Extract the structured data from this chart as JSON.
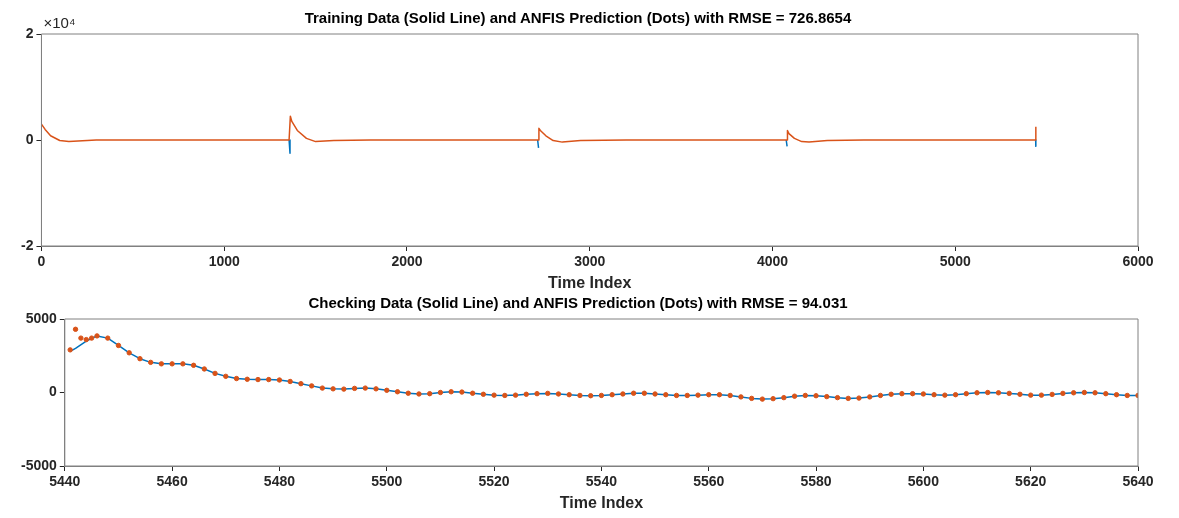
{
  "chart_data": [
    {
      "type": "line",
      "title": "Training Data (Solid Line) and ANFIS Prediction (Dots) with RMSE = 726.8654",
      "xlabel": "Time Index",
      "annotations": [
        "×10⁴"
      ],
      "xlim": [
        0,
        6000
      ],
      "xticks": [
        0,
        1000,
        2000,
        3000,
        4000,
        5000,
        6000
      ],
      "ylim": [
        -2,
        2
      ],
      "yticks": [
        -2,
        0,
        2
      ],
      "x": [
        0,
        20,
        50,
        100,
        150,
        200,
        300,
        500,
        1000,
        1355,
        1360,
        1362,
        1370,
        1400,
        1450,
        1500,
        1600,
        1800,
        2500,
        2715,
        2720,
        2722,
        2730,
        2760,
        2800,
        2850,
        2950,
        3200,
        4000,
        4075,
        4080,
        4082,
        4090,
        4120,
        4160,
        4200,
        4300,
        4500,
        5435,
        5440,
        5441
      ],
      "series": [
        {
          "color": "#0072bd",
          "values": [
            null,
            null,
            null,
            null,
            null,
            null,
            null,
            null,
            null,
            0,
            -0.25,
            null,
            null,
            null,
            null,
            null,
            null,
            null,
            null,
            0,
            -0.15,
            null,
            null,
            null,
            null,
            null,
            null,
            null,
            null,
            0,
            -0.12,
            null,
            null,
            null,
            null,
            null,
            null,
            null,
            null,
            0,
            -0.12
          ]
        },
        {
          "color": "#d95319",
          "values": [
            0.3,
            0.2,
            0.08,
            -0.01,
            -0.03,
            -0.02,
            0,
            0,
            0,
            0,
            0,
            0.45,
            0.35,
            0.18,
            0.03,
            -0.03,
            -0.01,
            0,
            0,
            0,
            0,
            0.22,
            0.18,
            0.08,
            -0.01,
            -0.04,
            -0.01,
            0,
            0,
            0,
            0,
            0.18,
            0.12,
            0.03,
            -0.03,
            -0.04,
            -0.01,
            0,
            0,
            0,
            0.25
          ]
        }
      ]
    },
    {
      "type": "line",
      "title": "Checking Data (Solid Line) and ANFIS Prediction (Dots) with RMSE = 94.031",
      "xlabel": "Time Index",
      "xlim": [
        5440,
        5640
      ],
      "xticks": [
        5440,
        5460,
        5480,
        5500,
        5520,
        5540,
        5560,
        5580,
        5600,
        5620,
        5640
      ],
      "ylim": [
        -5000,
        5000
      ],
      "yticks": [
        -5000,
        0,
        5000
      ],
      "x": [
        5441,
        5442,
        5444,
        5446,
        5448,
        5450,
        5452,
        5454,
        5456,
        5458,
        5460,
        5462,
        5464,
        5466,
        5468,
        5470,
        5472,
        5474,
        5476,
        5478,
        5480,
        5482,
        5484,
        5486,
        5488,
        5490,
        5492,
        5494,
        5496,
        5498,
        5500,
        5502,
        5504,
        5506,
        5508,
        5510,
        5512,
        5514,
        5516,
        5518,
        5520,
        5522,
        5524,
        5526,
        5528,
        5530,
        5532,
        5534,
        5536,
        5538,
        5540,
        5542,
        5544,
        5546,
        5548,
        5550,
        5552,
        5554,
        5556,
        5558,
        5560,
        5562,
        5564,
        5566,
        5568,
        5570,
        5572,
        5574,
        5576,
        5578,
        5580,
        5582,
        5584,
        5586,
        5588,
        5590,
        5592,
        5594,
        5596,
        5598,
        5600,
        5602,
        5604,
        5606,
        5608,
        5610,
        5612,
        5614,
        5616,
        5618,
        5620,
        5622,
        5624,
        5626,
        5628,
        5630,
        5632,
        5634,
        5636,
        5638,
        5640
      ],
      "series": [
        {
          "color": "#0072bd",
          "values": [
            2800,
            3000,
            3500,
            3850,
            3700,
            3200,
            2700,
            2300,
            2050,
            1950,
            1950,
            1950,
            1850,
            1600,
            1300,
            1100,
            950,
            900,
            880,
            880,
            850,
            750,
            600,
            450,
            300,
            250,
            230,
            280,
            300,
            250,
            150,
            50,
            -50,
            -100,
            -80,
            0,
            50,
            30,
            -50,
            -120,
            -180,
            -200,
            -180,
            -120,
            -80,
            -60,
            -100,
            -150,
            -200,
            -220,
            -200,
            -150,
            -100,
            -50,
            -50,
            -100,
            -150,
            -200,
            -200,
            -180,
            -150,
            -150,
            -200,
            -300,
            -400,
            -450,
            -420,
            -350,
            -250,
            -200,
            -220,
            -280,
            -350,
            -400,
            -380,
            -300,
            -200,
            -120,
            -80,
            -80,
            -100,
            -150,
            -180,
            -150,
            -80,
            -20,
            0,
            -20,
            -60,
            -120,
            -180,
            -180,
            -130,
            -60,
            -20,
            0,
            -20,
            -80,
            -150,
            -200,
            -200
          ]
        },
        {
          "type": "scatter",
          "color": "#d95319",
          "x": [
            5441,
            5442,
            5443,
            5444,
            5445,
            5446,
            5448,
            5450,
            5452,
            5454,
            5456,
            5458,
            5460,
            5462,
            5464,
            5466,
            5468,
            5470,
            5472,
            5474,
            5476,
            5478,
            5480,
            5482,
            5484,
            5486,
            5488,
            5490,
            5492,
            5494,
            5496,
            5498,
            5500,
            5502,
            5504,
            5506,
            5508,
            5510,
            5512,
            5514,
            5516,
            5518,
            5520,
            5522,
            5524,
            5526,
            5528,
            5530,
            5532,
            5534,
            5536,
            5538,
            5540,
            5542,
            5544,
            5546,
            5548,
            5550,
            5552,
            5554,
            5556,
            5558,
            5560,
            5562,
            5564,
            5566,
            5568,
            5570,
            5572,
            5574,
            5576,
            5578,
            5580,
            5582,
            5584,
            5586,
            5588,
            5590,
            5592,
            5594,
            5596,
            5598,
            5600,
            5602,
            5604,
            5606,
            5608,
            5610,
            5612,
            5614,
            5616,
            5618,
            5620,
            5622,
            5624,
            5626,
            5628,
            5630,
            5632,
            5634,
            5636,
            5638,
            5640
          ],
          "values": [
            2900,
            4300,
            3700,
            3600,
            3700,
            3850,
            3700,
            3200,
            2700,
            2300,
            2050,
            1950,
            1950,
            1950,
            1850,
            1600,
            1300,
            1100,
            950,
            900,
            880,
            880,
            850,
            750,
            600,
            450,
            300,
            250,
            230,
            280,
            300,
            250,
            150,
            50,
            -50,
            -100,
            -80,
            0,
            50,
            30,
            -50,
            -120,
            -180,
            -200,
            -180,
            -120,
            -80,
            -60,
            -100,
            -150,
            -200,
            -220,
            -200,
            -150,
            -100,
            -50,
            -50,
            -100,
            -150,
            -200,
            -200,
            -180,
            -150,
            -150,
            -200,
            -300,
            -400,
            -450,
            -420,
            -350,
            -250,
            -200,
            -220,
            -280,
            -350,
            -400,
            -380,
            -300,
            -200,
            -120,
            -80,
            -80,
            -100,
            -150,
            -180,
            -150,
            -80,
            -20,
            0,
            -20,
            -60,
            -120,
            -180,
            -180,
            -130,
            -60,
            -20,
            0,
            -20,
            -80,
            -150,
            -200,
            -200
          ]
        }
      ]
    }
  ]
}
